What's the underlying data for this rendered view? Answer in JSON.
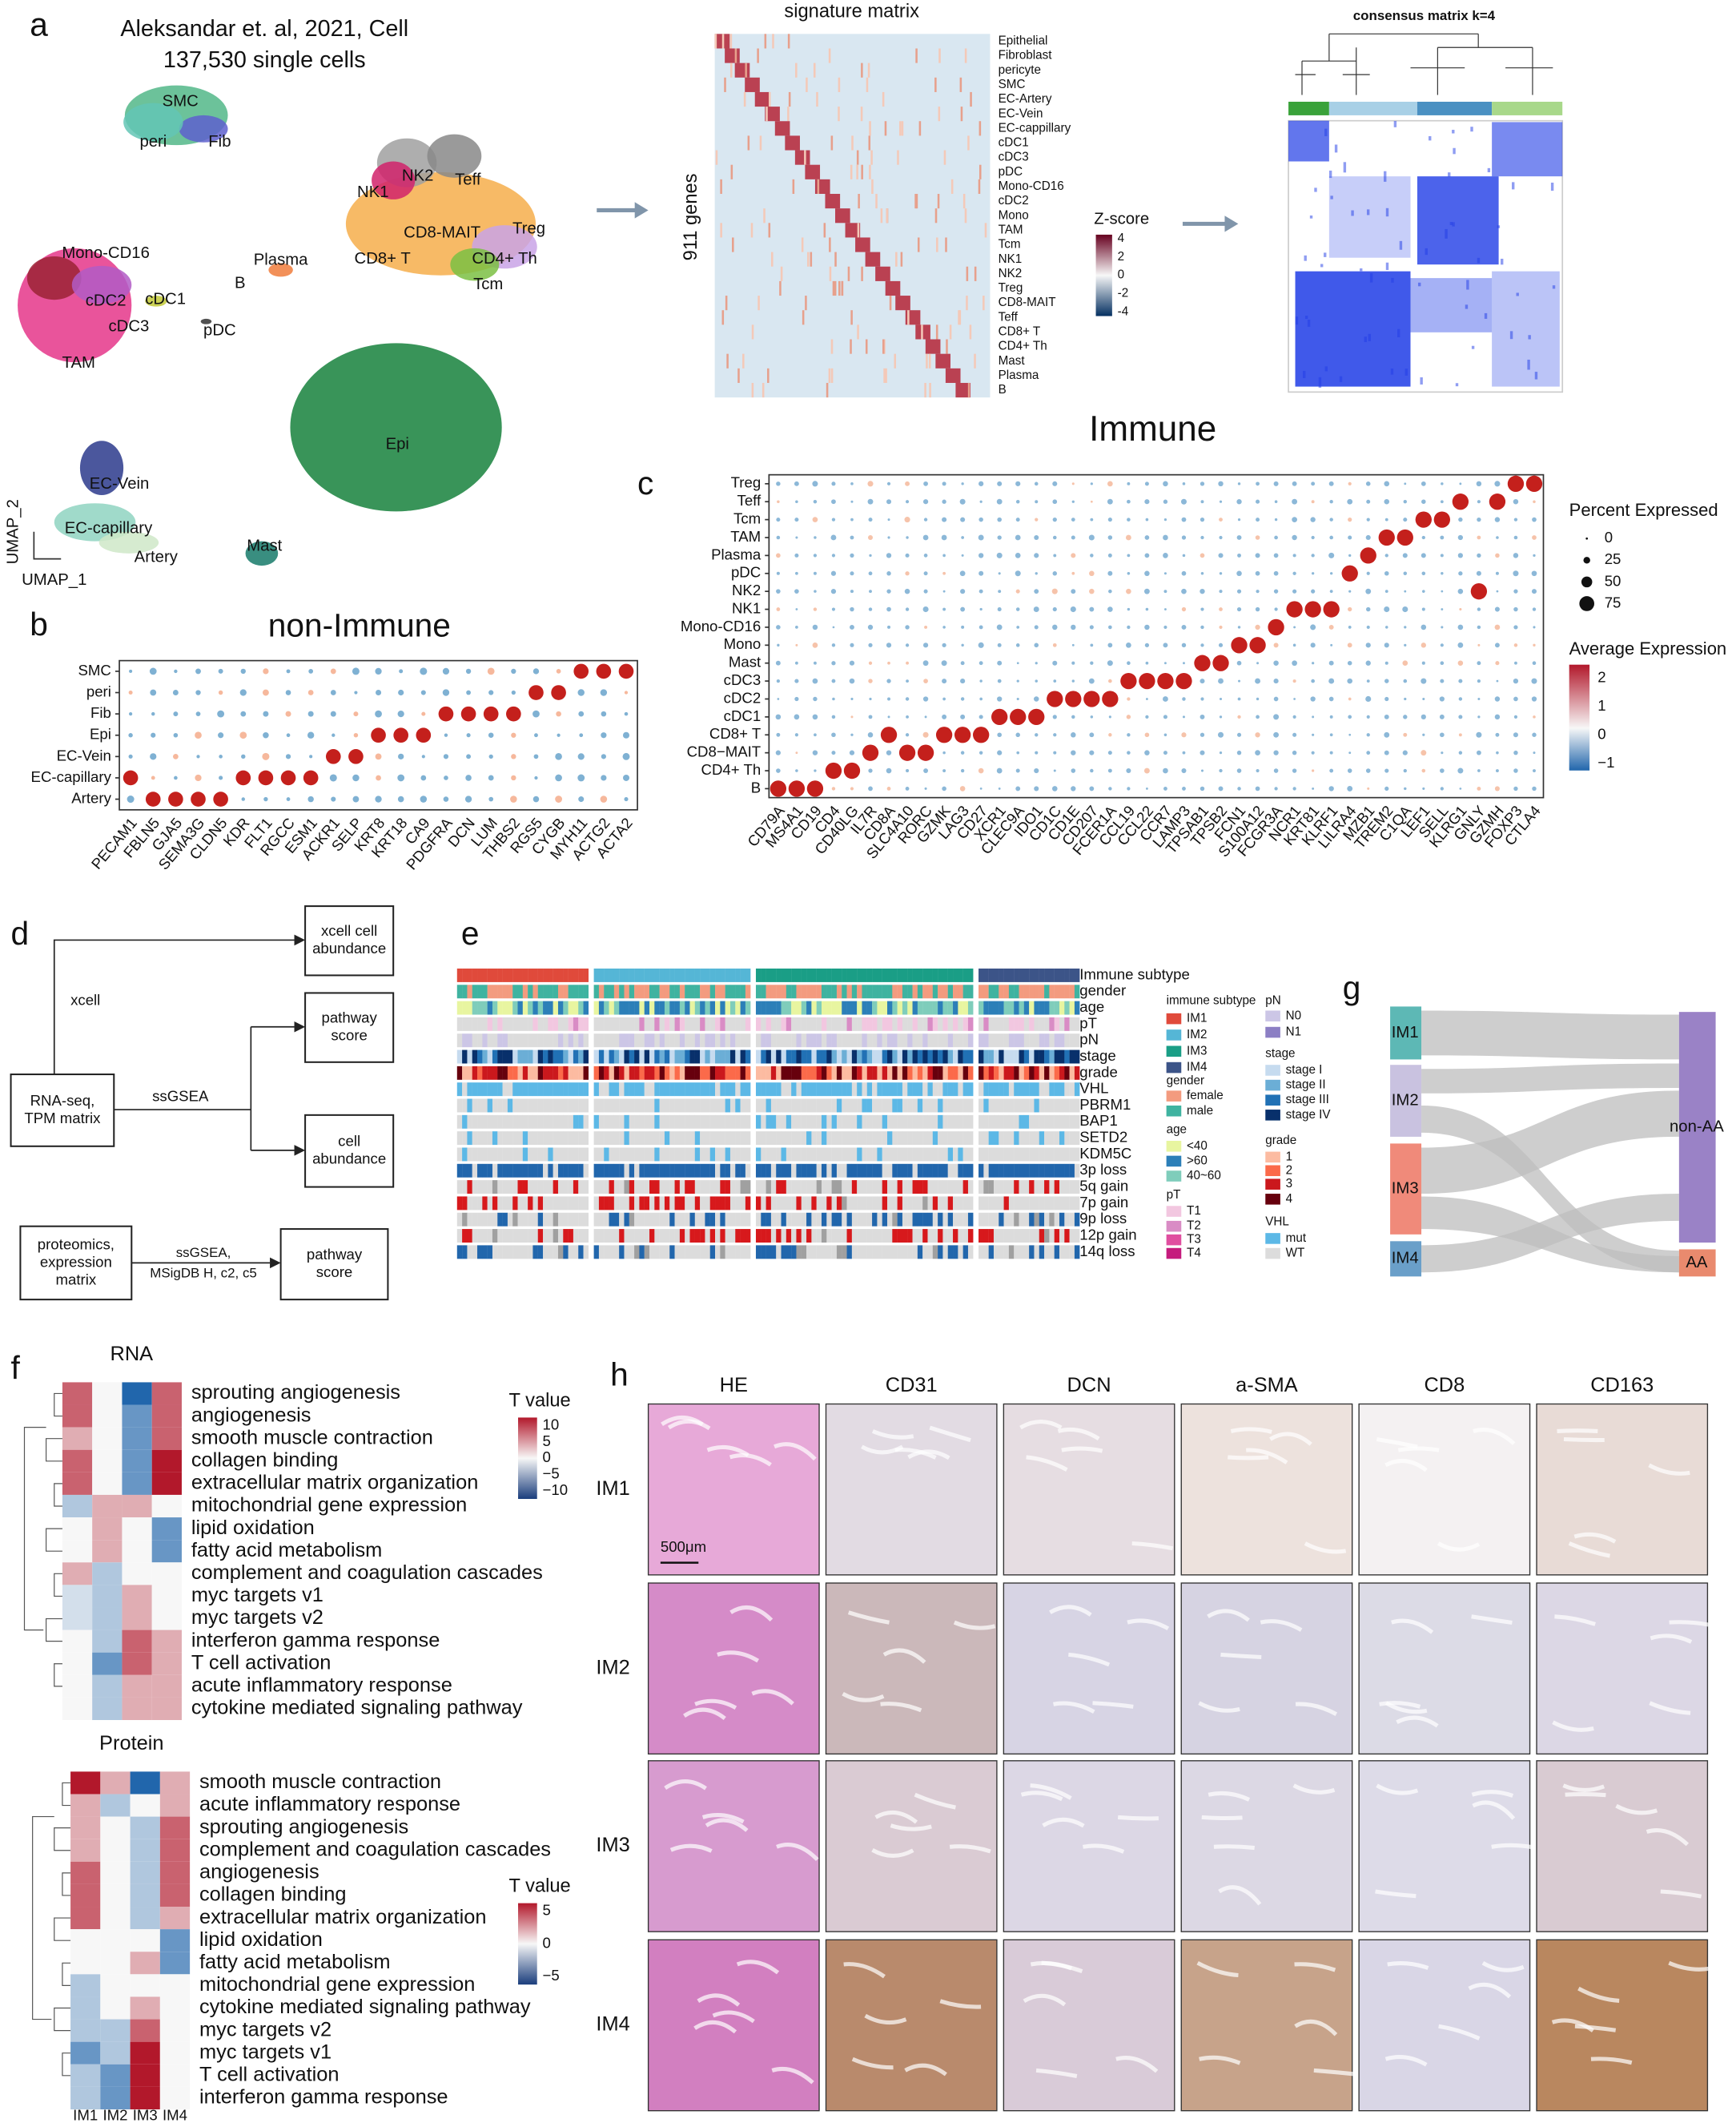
{
  "panels": {
    "a": {
      "label": "a",
      "title": "Aleksandar et. al, 2021, Cell",
      "subtitle": "137,530 single cells",
      "umap_clusters": [
        "SMC",
        "peri",
        "Fib",
        "NK1",
        "NK2",
        "Teff",
        "Treg",
        "CD8-MAIT",
        "CD8+ T",
        "CD4+ Th",
        "Tcm",
        "Mono-CD16",
        "cDC2",
        "cDC1",
        "cDC3",
        "Plasma",
        "B",
        "pDC",
        "TAM",
        "Epi",
        "EC-Vein",
        "EC-capillary",
        "Artery",
        "Mast"
      ],
      "umap_x_label": "UMAP_1",
      "umap_y_label": "UMAP_2",
      "signature_title": "signature matrix",
      "signature_y_label": "911 genes",
      "signature_rows": [
        "Epithelial",
        "Fibroblast",
        "pericyte",
        "SMC",
        "EC-Artery",
        "EC-Vein",
        "EC-cappillary",
        "cDC1",
        "cDC3",
        "pDC",
        "Mono-CD16",
        "cDC2",
        "Mono",
        "TAM",
        "Tcm",
        "NK1",
        "NK2",
        "Treg",
        "CD8-MAIT",
        "Teff",
        "CD8+ T",
        "CD4+ Th",
        "Mast",
        "Plasma",
        "B"
      ],
      "zscore_title": "Z-score",
      "zscore_ticks": [
        "4",
        "2",
        "0",
        "-2",
        "-4"
      ],
      "consensus_title": "consensus matrix k=4"
    },
    "b": {
      "label": "b",
      "title": "non-Immune",
      "rows": [
        "SMC",
        "peri",
        "Fib",
        "Epi",
        "EC-Vein",
        "EC-capillary",
        "Artery"
      ],
      "genes": [
        "PECAM1",
        "FBLN5",
        "GJA5",
        "SEMA3G",
        "CLDN5",
        "KDR",
        "FLT1",
        "RGCC",
        "ESM1",
        "ACKR1",
        "SELP",
        "KRT8",
        "KRT18",
        "CA9",
        "PDGFRA",
        "DCN",
        "LUM",
        "THBS2",
        "RGS5",
        "CYGB",
        "MYH11",
        "ACTG2",
        "ACTA2"
      ]
    },
    "c": {
      "label": "c",
      "title": "Immune",
      "rows": [
        "Treg",
        "Teff",
        "Tcm",
        "TAM",
        "Plasma",
        "pDC",
        "NK2",
        "NK1",
        "Mono-CD16",
        "Mono",
        "Mast",
        "cDC3",
        "cDC2",
        "cDC1",
        "CD8+ T",
        "CD8−MAIT",
        "CD4+ Th",
        "B"
      ],
      "genes": [
        "CD79A",
        "MS4A1",
        "CD19",
        "CD4",
        "CD40LG",
        "IL7R",
        "CD8A",
        "SLC4A10",
        "RORC",
        "GZMK",
        "LAG3",
        "CD27",
        "XCR1",
        "CLEC9A",
        "IDO1",
        "CD1C",
        "CD1E",
        "CD207",
        "FCER1A",
        "CCL19",
        "CCL22",
        "CCR7",
        "LAMP3",
        "TPSAB1",
        "TPSB2",
        "FCN1",
        "S100A12",
        "FCGR3A",
        "NCR1",
        "KRT81",
        "KLRF1",
        "LILRA4",
        "MZB1",
        "TREM2",
        "C1QA",
        "LEF1",
        "SELL",
        "KLRG1",
        "GNLY",
        "GZMH",
        "FOXP3",
        "CTLA4"
      ],
      "size_legend_title": "Percent Expressed",
      "size_legend": [
        "0",
        "25",
        "50",
        "75"
      ],
      "color_legend_title": "Average Expression",
      "color_legend": [
        "2",
        "1",
        "0",
        "−1"
      ]
    },
    "d": {
      "label": "d",
      "boxes": [
        [
          "xcell cell",
          "abundance"
        ],
        [
          "pathway",
          "score"
        ],
        [
          "RNA-seq,",
          "TPM matrix"
        ],
        [
          "cell",
          "abundance"
        ],
        [
          "proteomics,",
          "expression",
          "matrix"
        ],
        [
          "pathway",
          "score"
        ]
      ],
      "edges": [
        [
          "xcell"
        ],
        [
          "ssGSEA"
        ],
        [
          "ssGSEA,",
          "MSigDB H, c2, c5"
        ]
      ]
    },
    "e": {
      "label": "e",
      "rows": [
        "Immune subtype",
        "gender",
        "age",
        "pT",
        "pN",
        "stage",
        "grade",
        "VHL",
        "PBRM1",
        "BAP1",
        "SETD2",
        "KDM5C",
        "3p loss",
        "5q gain",
        "7p gain",
        "9p loss",
        "12p gain",
        "14q loss"
      ],
      "legend": [
        {
          "title": "immune subtype",
          "items": [
            "IM1",
            "IM2",
            "IM3",
            "IM4"
          ]
        },
        {
          "title": "gender",
          "items": [
            "female",
            "male"
          ]
        },
        {
          "title": "age",
          "items": [
            "<40",
            ">60",
            "40~60"
          ]
        },
        {
          "title": "pT",
          "items": [
            "T1",
            "T2",
            "T3",
            "T4"
          ]
        },
        {
          "title": "pN",
          "items": [
            "N0",
            "N1"
          ]
        },
        {
          "title": "stage",
          "items": [
            "stage I",
            "stage II",
            "stage III",
            "stage IV"
          ]
        },
        {
          "title": "grade",
          "items": [
            "1",
            "2",
            "3",
            "4"
          ]
        },
        {
          "title": "VHL",
          "items": [
            "mut",
            "WT"
          ]
        }
      ]
    },
    "f": {
      "label": "f",
      "rna": {
        "title": "RNA",
        "legend_title": "T value",
        "legend_ticks": [
          "10",
          "5",
          "0",
          "−5",
          "−10"
        ],
        "rows": [
          "sprouting angiogenesis",
          "angiogenesis",
          "smooth muscle contraction",
          "collagen binding",
          "extracellular matrix organization",
          "mitochondrial gene expression",
          "lipid oxidation",
          "fatty acid metabolism",
          "complement and coagulation cascades",
          "myc targets v1",
          "myc targets v2",
          "interferon gamma response",
          "T cell activation",
          "acute inflammatory response",
          "cytokine mediated signaling pathway"
        ]
      },
      "protein": {
        "title": "Protein",
        "legend_title": "T value",
        "legend_ticks": [
          "5",
          "0",
          "−5"
        ],
        "rows": [
          "smooth muscle contraction",
          "acute inflammatory response",
          "sprouting angiogenesis",
          "complement and coagulation cascades",
          "angiogenesis",
          "collagen binding",
          "extracellular matrix organization",
          "lipid oxidation",
          "fatty acid metabolism",
          "mitochondrial gene expression",
          "cytokine mediated signaling pathway",
          "myc targets v2",
          "myc targets v1",
          "T cell activation",
          "interferon gamma response"
        ]
      },
      "columns": [
        "IM1",
        "IM2",
        "IM3",
        "IM4"
      ]
    },
    "g": {
      "label": "g",
      "left": [
        "IM1",
        "IM2",
        "IM3",
        "IM4"
      ],
      "right": [
        "non-AA",
        "AA"
      ]
    },
    "h": {
      "label": "h",
      "columns": [
        "HE",
        "CD31",
        "DCN",
        "a-SMA",
        "CD8",
        "CD163"
      ],
      "rows": [
        "IM1",
        "IM2",
        "IM3",
        "IM4"
      ],
      "scale_bar": "500μm"
    }
  }
}
